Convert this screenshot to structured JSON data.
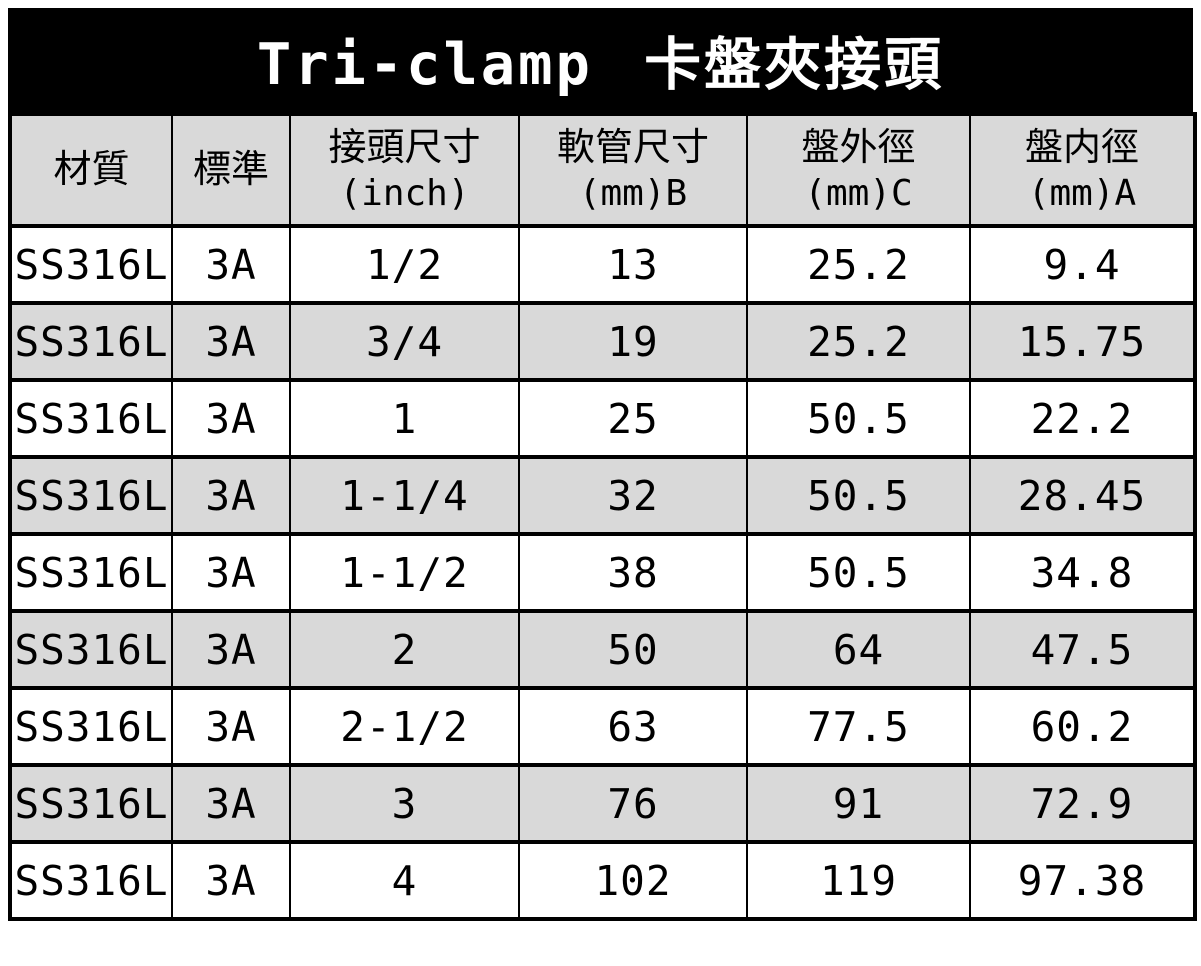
{
  "title": "Tri-clamp 卡盤夾接頭",
  "colors": {
    "banner_bg": "#000000",
    "banner_text": "#ffffff",
    "header_bg": "#d9d9d9",
    "row_bg": "#ffffff",
    "row_alt_bg": "#d9d9d9",
    "border": "#000000",
    "text": "#000000"
  },
  "header": {
    "material": "材質",
    "standard": "標準",
    "size_line1": "接頭尺寸",
    "size_line2": "(inch)",
    "hose_line1": "軟管尺寸",
    "hose_line2": "(mm)B",
    "outer_line1": "盤外徑",
    "outer_line2": "(mm)C",
    "inner_line1": "盤内徑",
    "inner_line2": "(mm)A"
  },
  "rows": [
    {
      "material": "SS316L",
      "standard": "3A",
      "size_inch": "1/2",
      "hose_mm": "13",
      "outer_dia_mm": "25.2",
      "inner_dia_mm": "9.4"
    },
    {
      "material": "SS316L",
      "standard": "3A",
      "size_inch": "3/4",
      "hose_mm": "19",
      "outer_dia_mm": "25.2",
      "inner_dia_mm": "15.75"
    },
    {
      "material": "SS316L",
      "standard": "3A",
      "size_inch": "1",
      "hose_mm": "25",
      "outer_dia_mm": "50.5",
      "inner_dia_mm": "22.2"
    },
    {
      "material": "SS316L",
      "standard": "3A",
      "size_inch": "1-1/4",
      "hose_mm": "32",
      "outer_dia_mm": "50.5",
      "inner_dia_mm": "28.45"
    },
    {
      "material": "SS316L",
      "standard": "3A",
      "size_inch": "1-1/2",
      "hose_mm": "38",
      "outer_dia_mm": "50.5",
      "inner_dia_mm": "34.8"
    },
    {
      "material": "SS316L",
      "standard": "3A",
      "size_inch": "2",
      "hose_mm": "50",
      "outer_dia_mm": "64",
      "inner_dia_mm": "47.5"
    },
    {
      "material": "SS316L",
      "standard": "3A",
      "size_inch": "2-1/2",
      "hose_mm": "63",
      "outer_dia_mm": "77.5",
      "inner_dia_mm": "60.2"
    },
    {
      "material": "SS316L",
      "standard": "3A",
      "size_inch": "3",
      "hose_mm": "76",
      "outer_dia_mm": "91",
      "inner_dia_mm": "72.9"
    },
    {
      "material": "SS316L",
      "standard": "3A",
      "size_inch": "4",
      "hose_mm": "102",
      "outer_dia_mm": "119",
      "inner_dia_mm": "97.38"
    }
  ]
}
